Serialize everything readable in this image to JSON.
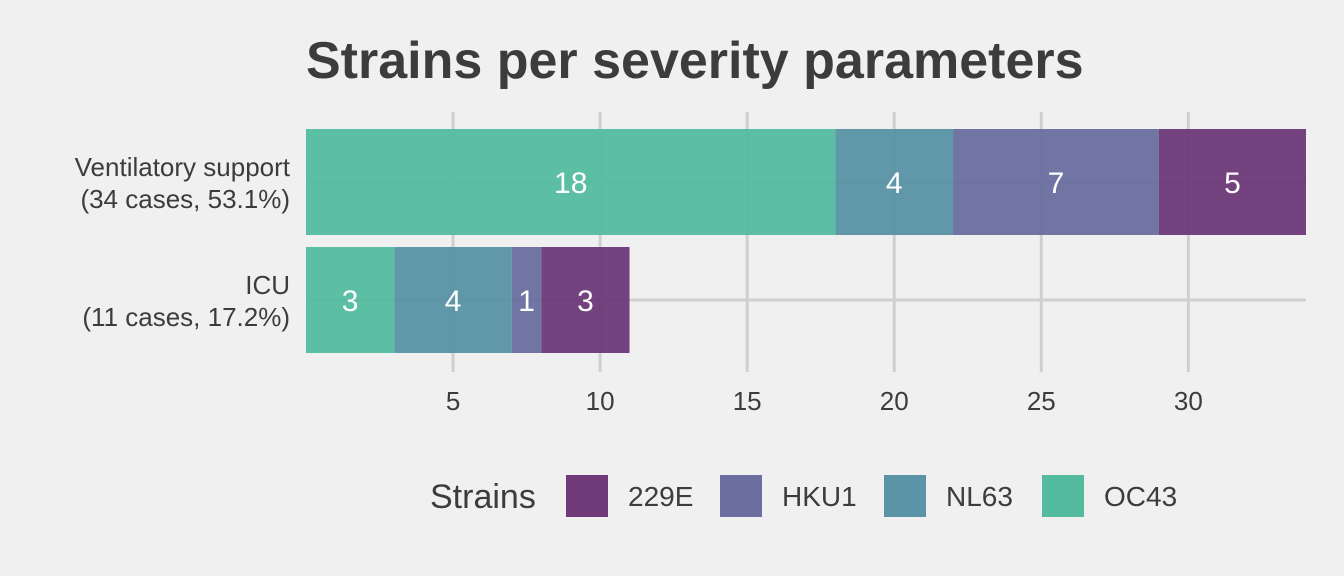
{
  "chart_data": {
    "type": "bar",
    "orientation": "horizontal",
    "stacked": true,
    "title": "Strains per severity parameters",
    "xlabel": "",
    "ylabel": "",
    "xlim": [
      0,
      34
    ],
    "xticks": [
      5,
      10,
      15,
      20,
      25,
      30
    ],
    "grid": true,
    "categories": [
      {
        "line1": "Ventilatory support",
        "line2": "(34 cases, 53.1%)"
      },
      {
        "line1": "ICU",
        "line2": "(11 cases, 17.2%)"
      }
    ],
    "stack_order": [
      "OC43",
      "NL63",
      "HKU1",
      "229E"
    ],
    "series": [
      {
        "name": "229E",
        "color": "#6e3a7a",
        "values": [
          5,
          3
        ]
      },
      {
        "name": "HKU1",
        "color": "#6b6fa0",
        "values": [
          7,
          1
        ]
      },
      {
        "name": "NL63",
        "color": "#5a94a6",
        "values": [
          4,
          4
        ]
      },
      {
        "name": "OC43",
        "color": "#55bb9f",
        "values": [
          18,
          3
        ]
      }
    ],
    "legend": {
      "title": "Strains",
      "position": "bottom",
      "order": [
        "229E",
        "HKU1",
        "NL63",
        "OC43"
      ]
    }
  }
}
